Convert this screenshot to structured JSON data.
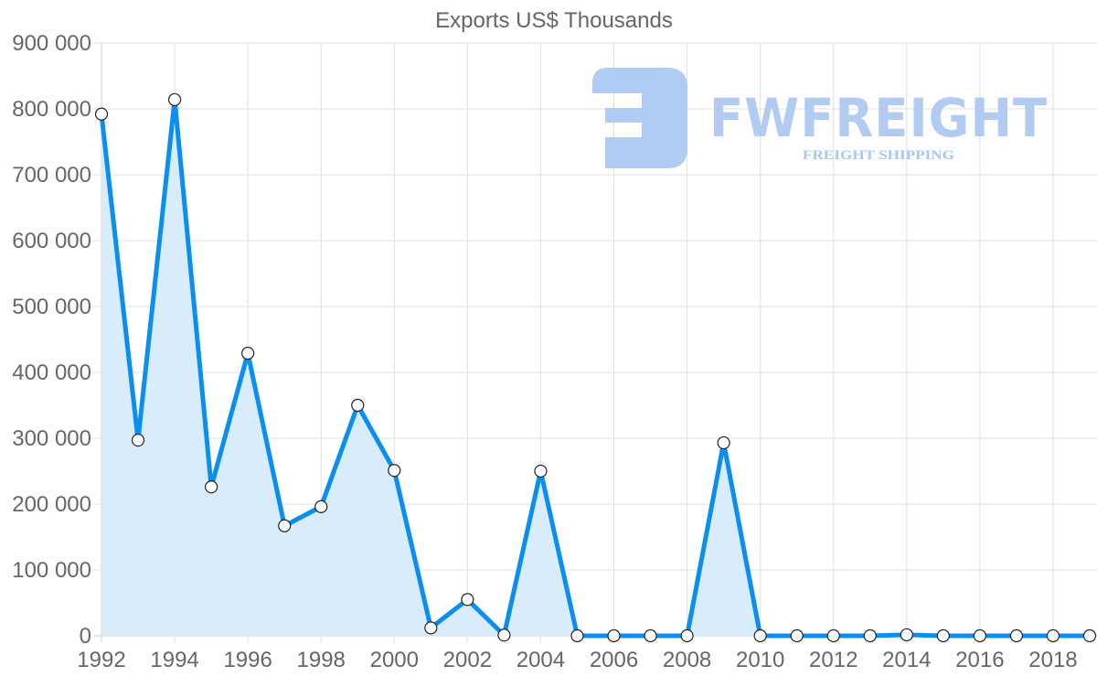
{
  "chart_data": {
    "type": "line",
    "title": "Exports US$ Thousands",
    "xlabel": "",
    "ylabel": "",
    "x": [
      1992,
      1993,
      1994,
      1995,
      1996,
      1997,
      1998,
      1999,
      2000,
      2001,
      2002,
      2003,
      2004,
      2005,
      2006,
      2007,
      2008,
      2009,
      2010,
      2011,
      2012,
      2013,
      2014,
      2015,
      2016,
      2017,
      2018,
      2019
    ],
    "series": [
      {
        "name": "Exports US$ Thousands",
        "values": [
          792000,
          297000,
          814000,
          226000,
          429000,
          167000,
          196000,
          350000,
          251000,
          12000,
          55000,
          1000,
          250000,
          0,
          0,
          0,
          0,
          293000,
          0,
          0,
          0,
          0,
          1500,
          0,
          0,
          0,
          0,
          0
        ],
        "color": "#0a8ff0",
        "fill": "#d6ebfb"
      }
    ],
    "ylim": [
      0,
      900000
    ],
    "y_ticks": [
      "0",
      "100 000",
      "200 000",
      "300 000",
      "400 000",
      "500 000",
      "600 000",
      "700 000",
      "800 000",
      "900 000"
    ],
    "x_ticks": [
      "1992",
      "1994",
      "1996",
      "1998",
      "2000",
      "2002",
      "2004",
      "2006",
      "2008",
      "2010",
      "2012",
      "2014",
      "2016",
      "2018"
    ],
    "grid": true,
    "legend": "none",
    "area_fill": true
  },
  "watermark": {
    "brand": "FWFREIGHT",
    "tagline": "FREIGHT SHIPPING"
  }
}
